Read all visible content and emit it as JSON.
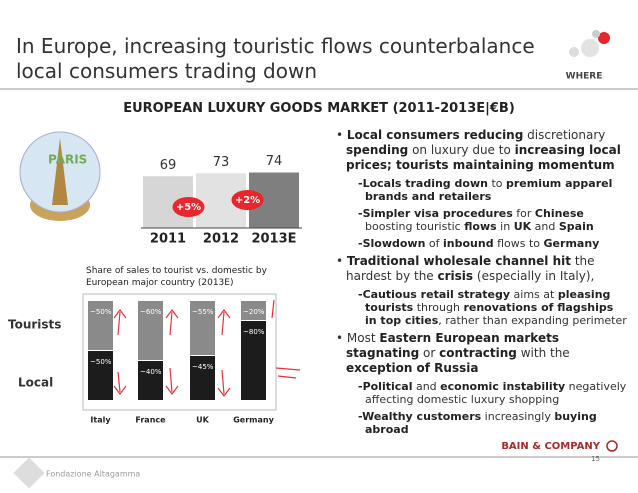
{
  "title": "In Europe, increasing touristic flows counterbalance local consumers trading down",
  "logo": "WHERE",
  "header": "EUROPEAN LUXURY GOODS MARKET (2011-2013E|€B)",
  "chart_data": [
    {
      "type": "bar",
      "categories": [
        "2011",
        "2012",
        "2013E"
      ],
      "values": [
        69,
        73,
        74
      ],
      "colors": [
        "#d6d6d6",
        "#e2e2e2",
        "#7f7f7f"
      ],
      "annotations": [
        "+5%",
        "+2%"
      ],
      "annotation_color": "#e8262b"
    },
    {
      "type": "stacked_bar",
      "subtitle": "Share of sales to tourist vs. domestic by European major country (2013E)",
      "categories": [
        "Italy",
        "France",
        "UK",
        "Germany"
      ],
      "series": [
        {
          "name": "Local",
          "color": "#1c1c1c",
          "values": [
            50,
            40,
            45,
            80
          ],
          "value_labels": [
            "~50%",
            "~40%",
            "~45%",
            "~80%"
          ]
        },
        {
          "name": "Tourists",
          "color": "#8a8a8a",
          "values": [
            50,
            60,
            55,
            20
          ],
          "value_labels": [
            "~50%",
            "~60%",
            "~55%",
            "~20%"
          ]
        }
      ]
    }
  ],
  "bullets": [
    [
      "Local consumers reducing",
      "discretionary",
      "spending",
      "on luxury due to",
      "increasing local prices; tourists maintaining momentum"
    ],
    [
      "-Locals trading down",
      "to",
      "premium apparel brands and retailers"
    ],
    [
      "-Simpler visa procedures",
      "for",
      "Chinese",
      "boosting touristic",
      "flows",
      "in",
      "UK",
      "and",
      "Spain"
    ],
    [
      "-Slowdown",
      "of",
      "inbound",
      "flows to",
      "Germany"
    ],
    [
      "Traditional wholesale channel hit",
      "the hardest by the",
      "crisis",
      "(especially in Italy),"
    ],
    [
      "-Cautious retail strategy",
      "aims at",
      "pleasing tourists",
      "through",
      "renovations of flagships in top cities",
      ", rather than expanding perimeter"
    ],
    [
      "Most",
      "Eastern European markets stagnating",
      "or",
      "contracting",
      "with the",
      "exception of Russia"
    ],
    [
      "-Political",
      "and",
      "economic instability",
      "negatively affecting domestic luxury shopping"
    ],
    [
      "-Wealthy customers",
      "increasingly",
      "buying abroad"
    ]
  ],
  "footer": {
    "left": "Fondazione Altagamma",
    "brand": "BAIN & COMPANY",
    "page": "15"
  }
}
